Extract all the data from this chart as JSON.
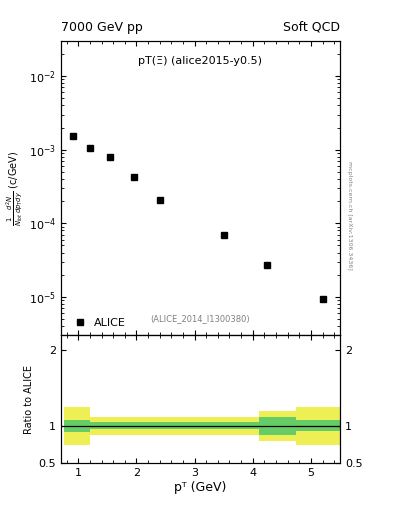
{
  "title_left": "7000 GeV pp",
  "title_right": "Soft QCD",
  "annotation": "pT(Ξ) (alice2015-y0.5)",
  "watermark": "(ALICE_2014_I1300380)",
  "right_label": "mcplots.cern.ch [arXiv:1306.3436]",
  "ylabel_main": "  1    d²N   (c/GeV)\nNᴼᴼᴼ dpᵀdy",
  "ylabel_ratio": "Ratio to ALICE",
  "xlabel": "pᵀ (GeV)",
  "legend_label": "ALICE",
  "data_x": [
    0.9,
    1.2,
    1.55,
    1.95,
    2.4,
    3.5,
    4.25,
    5.2
  ],
  "data_y": [
    0.00155,
    0.00105,
    0.0008,
    0.00042,
    0.00021,
    7e-05,
    2.7e-05,
    9.5e-06
  ],
  "xlim": [
    0.7,
    5.5
  ],
  "ylim_main_lo": 3e-06,
  "ylim_main_hi": 0.03,
  "ylim_ratio": [
    0.5,
    2.2
  ],
  "ratio_yticks": [
    0.5,
    1.0,
    2.0
  ],
  "ratio_ytick_labels": [
    "0.5",
    "1",
    "2"
  ],
  "green_color": "#66CC66",
  "yellow_color": "#EEEE55",
  "ratio_line_y": 1.0,
  "band_segments": [
    {
      "xlo": 0.75,
      "xhi": 1.2,
      "g_ylo": 0.92,
      "g_yhi": 1.08,
      "y_ylo": 0.75,
      "y_yhi": 1.25
    },
    {
      "xlo": 1.2,
      "xhi": 4.1,
      "g_ylo": 0.95,
      "g_yhi": 1.05,
      "y_ylo": 0.88,
      "y_yhi": 1.12
    },
    {
      "xlo": 4.1,
      "xhi": 4.75,
      "g_ylo": 0.88,
      "g_yhi": 1.12,
      "y_ylo": 0.8,
      "y_yhi": 1.2
    },
    {
      "xlo": 4.75,
      "xhi": 5.55,
      "g_ylo": 0.93,
      "g_yhi": 1.07,
      "y_ylo": 0.75,
      "y_yhi": 1.25
    }
  ],
  "marker_color": "black",
  "marker_style": "s",
  "marker_size": 5
}
